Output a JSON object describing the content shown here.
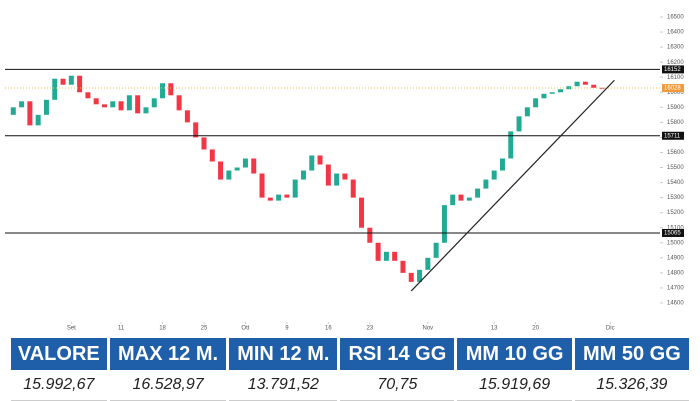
{
  "chart_data": {
    "type": "candlestick",
    "x": [
      0,
      1,
      2,
      3,
      4,
      5,
      6,
      7,
      8,
      9,
      10,
      11,
      12,
      13,
      14,
      15,
      16,
      17,
      18,
      19,
      20,
      21,
      22,
      23,
      24,
      25,
      26,
      27,
      28,
      29,
      30,
      31,
      32,
      33,
      34,
      35,
      36,
      37,
      38,
      39,
      40,
      41,
      42,
      43,
      44,
      45,
      46,
      47,
      48,
      49,
      50,
      51,
      52,
      53,
      54,
      55,
      56,
      57,
      58,
      59,
      60,
      61,
      62,
      63,
      64,
      65,
      66,
      67,
      68,
      69,
      70,
      71
    ],
    "open": [
      15850,
      15900,
      15940,
      15780,
      15850,
      15950,
      16090,
      16050,
      16110,
      16000,
      15960,
      15920,
      15900,
      15940,
      15880,
      15980,
      15860,
      15900,
      15960,
      16060,
      15980,
      15880,
      15800,
      15700,
      15620,
      15540,
      15420,
      15480,
      15500,
      15560,
      15460,
      15300,
      15280,
      15320,
      15300,
      15420,
      15480,
      15580,
      15520,
      15380,
      15460,
      15420,
      15300,
      15100,
      15000,
      14880,
      14940,
      14880,
      14800,
      14740,
      14820,
      14900,
      15000,
      15250,
      15320,
      15280,
      15300,
      15360,
      15420,
      15480,
      15560,
      15740,
      15840,
      15900,
      15960,
      15990,
      16000,
      16020,
      16040,
      16070,
      16050,
      16030
    ],
    "close": [
      15900,
      15940,
      15780,
      15850,
      15950,
      16090,
      16050,
      16110,
      16000,
      15960,
      15920,
      15900,
      15940,
      15880,
      15980,
      15860,
      15900,
      15960,
      16060,
      15980,
      15880,
      15800,
      15700,
      15620,
      15540,
      15420,
      15480,
      15500,
      15560,
      15460,
      15300,
      15280,
      15320,
      15300,
      15420,
      15480,
      15580,
      15520,
      15380,
      15460,
      15420,
      15300,
      15100,
      15000,
      14880,
      14940,
      14880,
      14800,
      14740,
      14820,
      14900,
      15000,
      15250,
      15320,
      15280,
      15300,
      15360,
      15420,
      15480,
      15560,
      15740,
      15840,
      15900,
      15960,
      15990,
      16000,
      16020,
      16040,
      16070,
      16050,
      16030,
      16028
    ],
    "up_color": "#22ab94",
    "down_color": "#f23645",
    "xlim": [
      -1,
      78
    ],
    "xticks": [
      {
        "value": 7,
        "label": "Set"
      },
      {
        "value": 13,
        "label": "11"
      },
      {
        "value": 18,
        "label": "18"
      },
      {
        "value": 23,
        "label": "25"
      },
      {
        "value": 28,
        "label": "Ott"
      },
      {
        "value": 33,
        "label": "9"
      },
      {
        "value": 38,
        "label": "16"
      },
      {
        "value": 43,
        "label": "23"
      },
      {
        "value": 50,
        "label": "Nov"
      },
      {
        "value": 58,
        "label": "13"
      },
      {
        "value": 63,
        "label": "20"
      },
      {
        "value": 72,
        "label": "Dic"
      }
    ],
    "ylim": [
      14500,
      16560
    ],
    "yticks": [
      16500,
      16400,
      16300,
      16200,
      16100,
      16000,
      15900,
      15800,
      15700,
      15600,
      15500,
      15400,
      15300,
      15200,
      15100,
      15000,
      14900,
      14800,
      14700,
      14600
    ],
    "levels": [
      16152,
      15711,
      15065
    ],
    "last": 16028,
    "trendline": {
      "x": [
        48,
        72.5
      ],
      "values": [
        14680,
        16080
      ]
    }
  },
  "table": {
    "headers": [
      "VALORE",
      "MAX 12 M.",
      "MIN 12 M.",
      "RSI 14 GG",
      "MM 10 GG",
      "MM 50 GG"
    ],
    "values": [
      "15.992,67",
      "16.528,97",
      "13.791,52",
      "70,75",
      "15.919,69",
      "15.326,39"
    ]
  }
}
